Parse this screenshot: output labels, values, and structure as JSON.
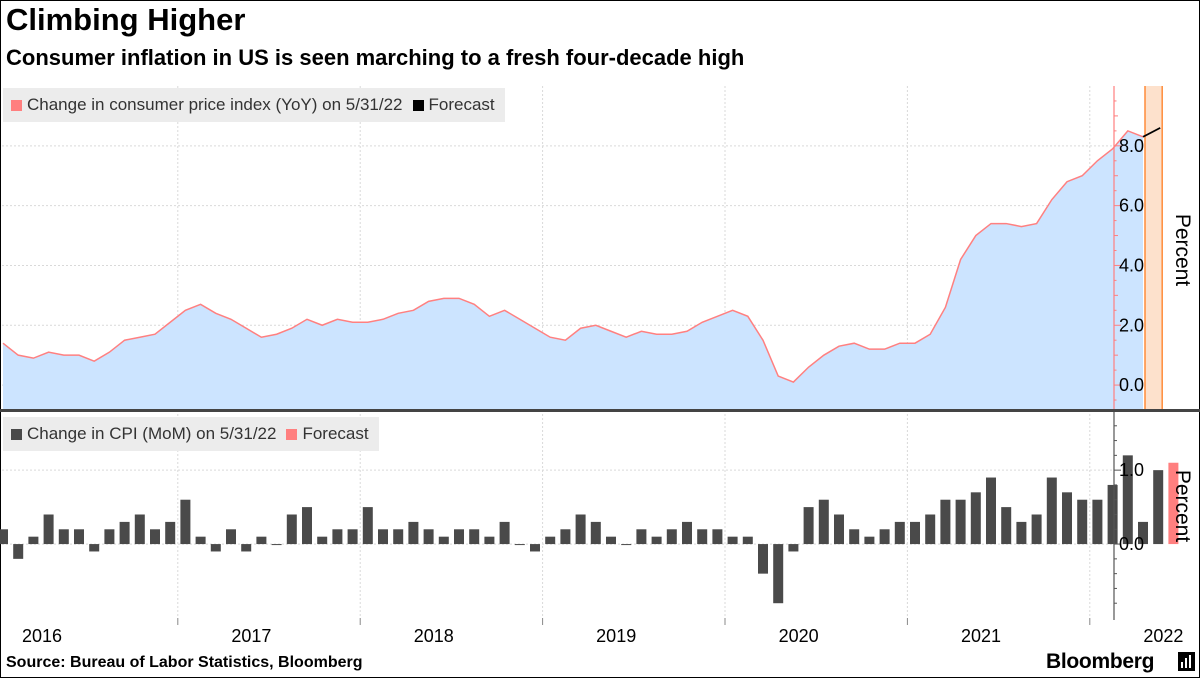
{
  "title": "Climbing Higher",
  "subtitle": "Consumer inflation in US is seen marching to a fresh four-decade high",
  "source": "Source: Bureau of Labor Statistics, Bloomberg",
  "brand": "Bloomberg",
  "colors": {
    "area_fill": "#cce4ff",
    "line": "#ff8080",
    "forecast_band": "#fde1cc",
    "forecast_border": "#ff8c3a",
    "bar": "#4a4a4a",
    "bar_forecast": "#ff7f7f",
    "axis": "#ff7f7f",
    "grid": "#d9d9d9"
  },
  "chart_data": [
    {
      "type": "area",
      "legend": [
        "Change in consumer price index (YoY) on 5/31/22",
        "Forecast"
      ],
      "ylabel": "Percent",
      "yticks": [
        "0.0",
        "2.0",
        "4.0",
        "6.0",
        "8.0"
      ],
      "ylim": [
        -0.8,
        10.0
      ],
      "x_start": "2016-01",
      "values": [
        1.4,
        1.0,
        0.9,
        1.1,
        1.0,
        1.0,
        0.8,
        1.1,
        1.5,
        1.6,
        1.7,
        2.1,
        2.5,
        2.7,
        2.4,
        2.2,
        1.9,
        1.6,
        1.7,
        1.9,
        2.2,
        2.0,
        2.2,
        2.1,
        2.1,
        2.2,
        2.4,
        2.5,
        2.8,
        2.9,
        2.9,
        2.7,
        2.3,
        2.5,
        2.2,
        1.9,
        1.6,
        1.5,
        1.9,
        2.0,
        1.8,
        1.6,
        1.8,
        1.7,
        1.7,
        1.8,
        2.1,
        2.3,
        2.5,
        2.3,
        1.5,
        0.3,
        0.1,
        0.6,
        1.0,
        1.3,
        1.4,
        1.2,
        1.2,
        1.4,
        1.4,
        1.7,
        2.6,
        4.2,
        5.0,
        5.4,
        5.4,
        5.3,
        5.4,
        6.2,
        6.8,
        7.0,
        7.5,
        7.9,
        8.5,
        8.3
      ],
      "forecast_from": "2022-04",
      "forecast_value": 8.6
    },
    {
      "type": "bar",
      "legend": [
        "Change in CPI (MoM) on 5/31/22",
        "Forecast"
      ],
      "ylabel": "Percent",
      "yticks": [
        "0.0",
        "1.0"
      ],
      "ylim": [
        -1.0,
        1.8
      ],
      "x_start": "2016-01",
      "values": [
        0.2,
        -0.2,
        0.1,
        0.4,
        0.2,
        0.2,
        -0.1,
        0.2,
        0.3,
        0.4,
        0.2,
        0.3,
        0.6,
        0.1,
        -0.1,
        0.2,
        -0.1,
        0.1,
        0.0,
        0.4,
        0.5,
        0.1,
        0.2,
        0.2,
        0.5,
        0.2,
        0.2,
        0.3,
        0.2,
        0.1,
        0.2,
        0.2,
        0.1,
        0.3,
        0.0,
        -0.1,
        0.1,
        0.2,
        0.4,
        0.3,
        0.1,
        0.0,
        0.2,
        0.1,
        0.2,
        0.3,
        0.2,
        0.2,
        0.1,
        0.1,
        -0.4,
        -0.8,
        -0.1,
        0.5,
        0.6,
        0.4,
        0.2,
        0.1,
        0.2,
        0.3,
        0.3,
        0.4,
        0.6,
        0.6,
        0.7,
        0.9,
        0.5,
        0.3,
        0.4,
        0.9,
        0.7,
        0.6,
        0.6,
        0.8,
        1.2,
        0.3,
        1.0
      ],
      "forecast_value": 1.1
    }
  ],
  "x_axis": {
    "labels": [
      "2016",
      "2017",
      "2018",
      "2019",
      "2020",
      "2021",
      "2022"
    ]
  }
}
